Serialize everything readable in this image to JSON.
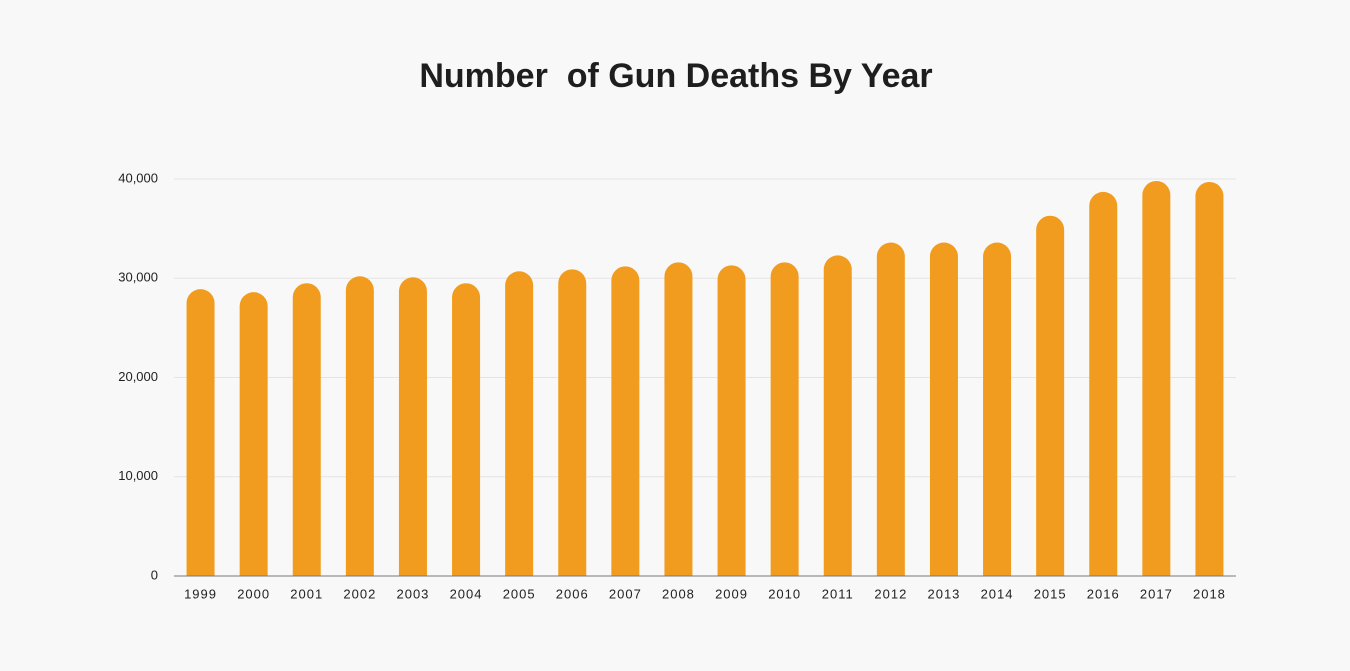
{
  "chart_data": {
    "type": "bar",
    "title": "Number  of Gun Deaths By Year",
    "categories": [
      "1999",
      "2000",
      "2001",
      "2002",
      "2003",
      "2004",
      "2005",
      "2006",
      "2007",
      "2008",
      "2009",
      "2010",
      "2011",
      "2012",
      "2013",
      "2014",
      "2015",
      "2016",
      "2017",
      "2018"
    ],
    "values": [
      28900,
      28600,
      29500,
      30200,
      30100,
      29500,
      30700,
      30900,
      31200,
      31600,
      31300,
      31600,
      32300,
      33600,
      33600,
      33600,
      36300,
      38700,
      39800,
      39700
    ],
    "color": "#f29c1f",
    "ylim": [
      0,
      40000
    ],
    "yticks": [
      0,
      {
        "value": 10000,
        "label": "10,000"
      },
      {
        "value": 20000,
        "label": "20,000"
      },
      {
        "value": 30000,
        "label": "30,000"
      },
      {
        "value": 40000,
        "label": "40,000"
      }
    ],
    "grid": true
  }
}
